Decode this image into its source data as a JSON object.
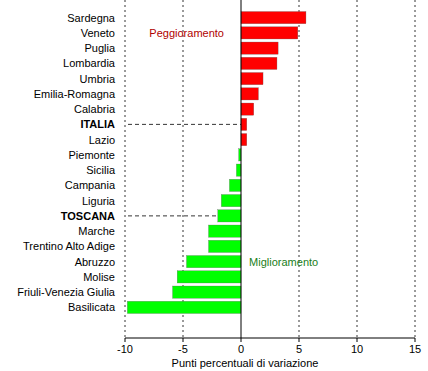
{
  "chart_data": {
    "type": "bar",
    "orientation": "horizontal",
    "x_label": "Punti percentuali di variazione",
    "categories": [
      "Sardegna",
      "Veneto",
      "Puglia",
      "Lombardia",
      "Umbria",
      "Emilia-Romagna",
      "Calabria",
      "ITALIA",
      "Lazio",
      "Piemonte",
      "Sicilia",
      "Campania",
      "Liguria",
      "TOSCANA",
      "Marche",
      "Trentino Alto Adige",
      "Abruzzo",
      "Molise",
      "Friuli-Venezia Giulia",
      "Basilicata"
    ],
    "values": [
      5.6,
      4.9,
      3.2,
      3.1,
      1.9,
      1.5,
      1.1,
      0.5,
      0.5,
      -0.2,
      -0.4,
      -1.0,
      -1.7,
      -2.0,
      -2.8,
      -2.8,
      -4.7,
      -5.5,
      -5.9,
      -9.8
    ],
    "colors": [
      "#ff0000",
      "#ff0000",
      "#ff0000",
      "#ff0000",
      "#ff0000",
      "#ff0000",
      "#ff0000",
      "#ff0000",
      "#ff0000",
      "#00ff00",
      "#00ff00",
      "#00ff00",
      "#00ff00",
      "#00ff00",
      "#00ff00",
      "#00ff00",
      "#00ff00",
      "#00ff00",
      "#00ff00",
      "#00ff00"
    ],
    "xlim": [
      -10,
      15
    ],
    "xticks": [
      -10,
      -5,
      0,
      5,
      10,
      15
    ],
    "grid": true,
    "annotations": [
      {
        "text": "Peggioramento",
        "x": -7.9,
        "category_index": 1,
        "color": "#b00000"
      },
      {
        "text": "Miglioramento",
        "x": 0.7,
        "category_index": 16,
        "color": "#208020"
      }
    ]
  }
}
